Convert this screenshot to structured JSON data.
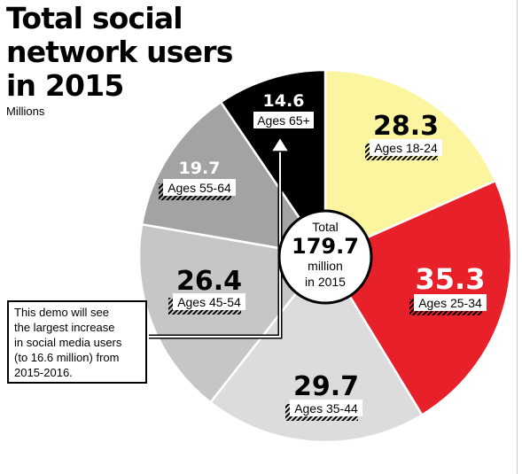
{
  "title": {
    "lines": [
      "Total social",
      "network users",
      "in 2015"
    ],
    "unit": "Millions"
  },
  "center": {
    "line1": "Total",
    "value": "179.7",
    "line2": "million",
    "line3": "in 2015"
  },
  "annotation": {
    "lines": [
      "This demo will see",
      "the largest increase",
      "in social media users",
      "(to 16.6 million) from",
      "2015-2016."
    ]
  },
  "colors": {
    "ages_18_24": "#fcf5a0",
    "ages_25_34": "#e8202a",
    "ages_35_44": "#dcdcdc",
    "ages_45_54": "#c6c6c6",
    "ages_55_64": "#a3a3a3",
    "ages_65_plus": "#000000"
  },
  "chart_data": {
    "type": "pie",
    "title": "Total social network users in 2015",
    "unit": "Millions",
    "total": 179.7,
    "slices": [
      {
        "label": "Ages 18-24",
        "value": 28.3,
        "value_label": "28.3"
      },
      {
        "label": "Ages 25-34",
        "value": 35.3,
        "value_label": "35.3"
      },
      {
        "label": "Ages 35-44",
        "value": 29.7,
        "value_label": "29.7"
      },
      {
        "label": "Ages 45-54",
        "value": 26.4,
        "value_label": "26.4"
      },
      {
        "label": "Ages 55-64",
        "value": 19.7,
        "value_label": "19.7"
      },
      {
        "label": "Ages 65+",
        "value": 14.6,
        "value_label": "14.6"
      }
    ]
  }
}
